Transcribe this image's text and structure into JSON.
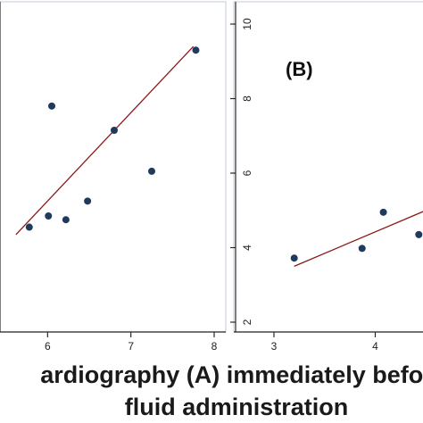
{
  "colors": {
    "plot_bg": "#ffffff",
    "frame": "#d6dee6",
    "axis": "#2a2a2a",
    "point": "#1f3a5c",
    "fit_line": "#8b1a1a"
  },
  "caption": {
    "line1": "ardiography (A) immediately befor",
    "line2": "fluid administration"
  },
  "chart_data": [
    {
      "type": "scatter",
      "panel_label": "",
      "title": "",
      "xlabel": "",
      "ylabel": "",
      "xlim": [
        5.62,
        8.05
      ],
      "ylim": [
        1.8,
        10.3
      ],
      "xticks": [
        6,
        7,
        8
      ],
      "yticks": [],
      "grid": false,
      "points": [
        {
          "x": 5.78,
          "y": 4.55
        },
        {
          "x": 6.01,
          "y": 4.85
        },
        {
          "x": 6.05,
          "y": 7.8
        },
        {
          "x": 6.22,
          "y": 4.75
        },
        {
          "x": 6.48,
          "y": 5.25
        },
        {
          "x": 6.8,
          "y": 7.15
        },
        {
          "x": 7.25,
          "y": 6.05
        },
        {
          "x": 7.78,
          "y": 9.3
        }
      ],
      "fit_line": {
        "x": [
          5.62,
          7.75
        ],
        "y": [
          4.35,
          9.4
        ]
      }
    },
    {
      "type": "scatter",
      "panel_label": "(B)",
      "title": "",
      "xlabel": "",
      "ylabel": "",
      "xlim": [
        2.9,
        4.5
      ],
      "ylim": [
        1.8,
        10.3
      ],
      "xticks": [
        3,
        4
      ],
      "yticks": [
        2,
        4,
        6,
        8,
        10
      ],
      "grid": false,
      "points": [
        {
          "x": 3.2,
          "y": 3.72
        },
        {
          "x": 3.87,
          "y": 3.98
        },
        {
          "x": 4.08,
          "y": 4.95
        },
        {
          "x": 4.43,
          "y": 4.35
        }
      ],
      "fit_line": {
        "x": [
          3.2,
          4.5
        ],
        "y": [
          3.5,
          5.0
        ]
      }
    }
  ]
}
